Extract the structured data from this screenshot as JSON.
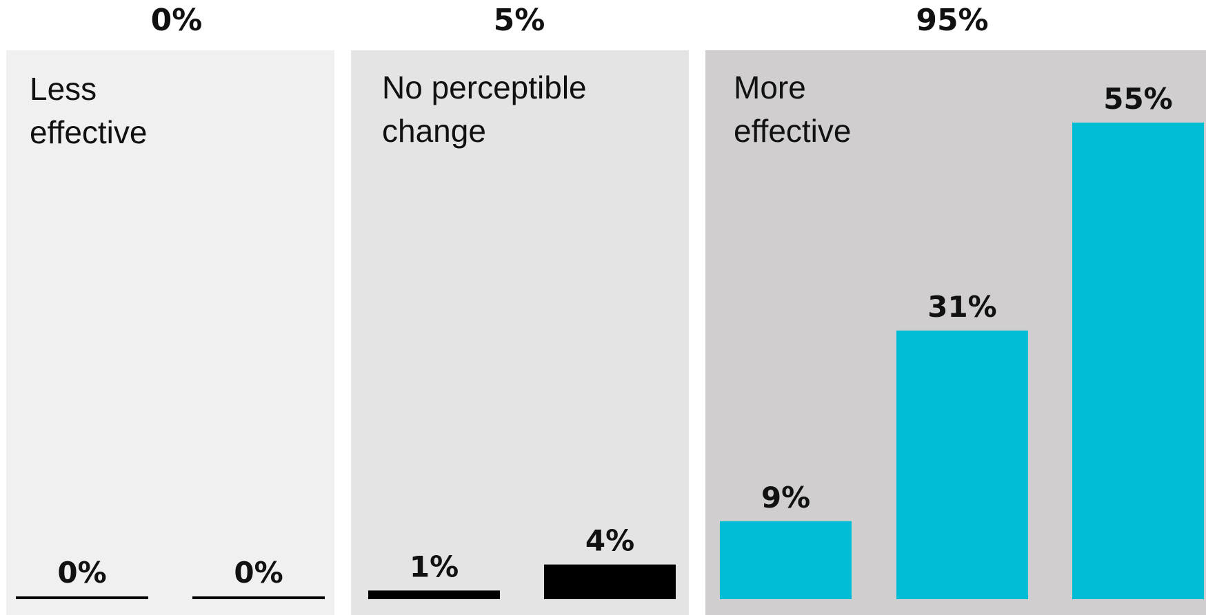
{
  "chart_data": {
    "type": "bar",
    "groups": [
      {
        "title_lines": [
          "Less",
          "effective"
        ],
        "total_label": "0%",
        "background": "#f0f0f0",
        "bar_color": "#000000",
        "values": [
          0,
          0
        ],
        "labels": [
          "0%",
          "0%"
        ]
      },
      {
        "title_lines": [
          "No perceptible",
          "change"
        ],
        "total_label": "5%",
        "background": "#e4e4e5",
        "bar_color": "#000000",
        "values": [
          1,
          4
        ],
        "labels": [
          "1%",
          "4%"
        ]
      },
      {
        "title_lines": [
          "More",
          "effective"
        ],
        "total_label": "95%",
        "background": "#d0cecf",
        "bar_color": "#00bcd4",
        "values": [
          9,
          31,
          55
        ],
        "labels": [
          "9%",
          "31%",
          "55%"
        ]
      }
    ],
    "ylim": [
      0,
      55
    ],
    "grid": false,
    "legend": "none"
  }
}
